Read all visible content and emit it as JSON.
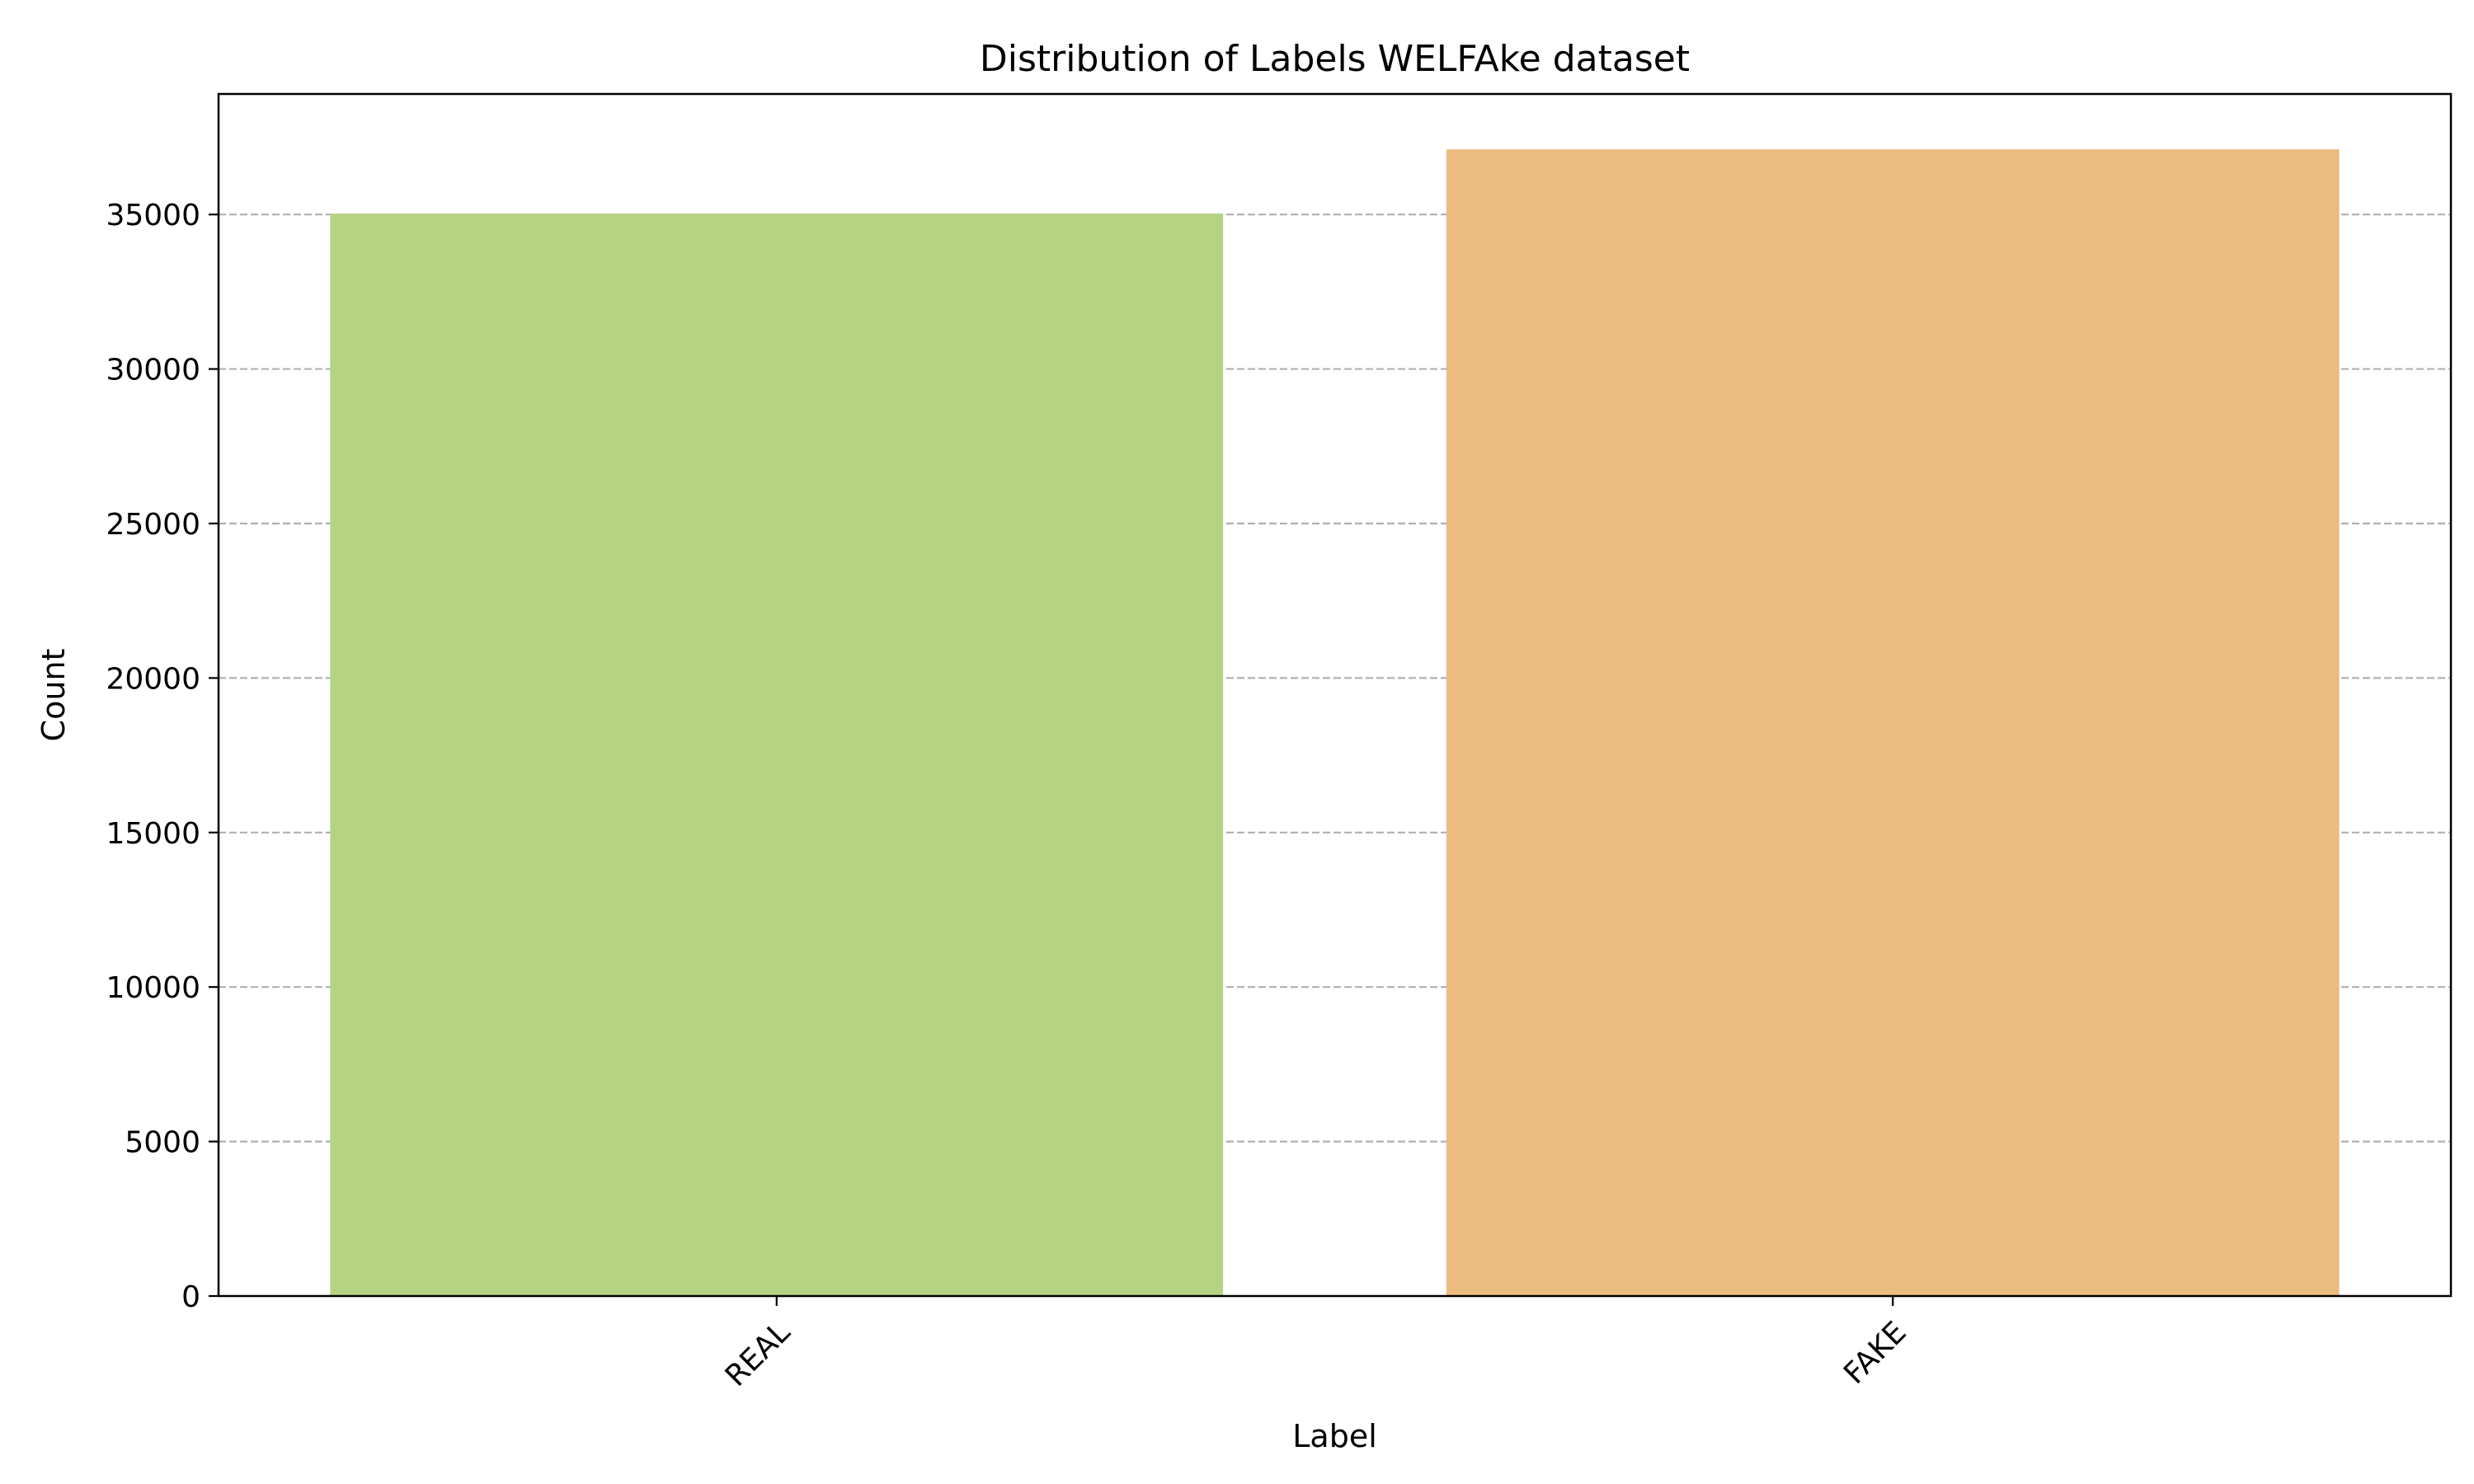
{
  "chart_data": {
    "type": "bar",
    "title": "Distribution of Labels WELFAke dataset",
    "xlabel": "Label",
    "ylabel": "Count",
    "categories": [
      "REAL",
      "FAKE"
    ],
    "values": [
      35028,
      37106
    ],
    "colors": [
      "#b5d383",
      "#ebbc80"
    ],
    "ylim": [
      0,
      38900
    ],
    "yticks": [
      0,
      5000,
      10000,
      15000,
      20000,
      25000,
      30000,
      35000
    ],
    "ytick_labels": [
      "0",
      "5000",
      "10000",
      "15000",
      "20000",
      "25000",
      "30000",
      "35000"
    ],
    "grid": "y, dashed",
    "xtick_rotation": 45
  }
}
